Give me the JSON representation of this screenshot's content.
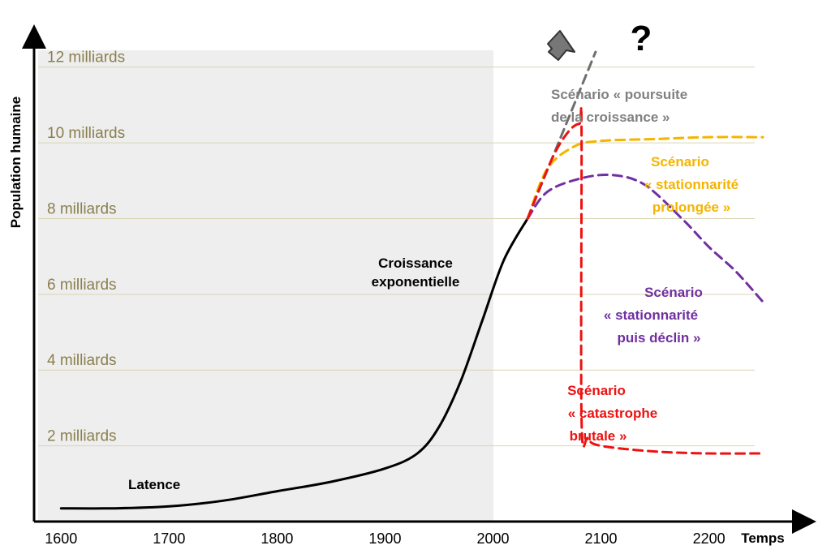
{
  "chart_data": {
    "type": "line",
    "xlabel": "Temps",
    "ylabel": "Population humaine",
    "xlim": [
      1575,
      2295
    ],
    "ylim": [
      0,
      13.0
    ],
    "x_ticks": [
      1600,
      1700,
      1800,
      1900,
      2000,
      2100,
      2200
    ],
    "y_gridlines": [
      {
        "value": 2,
        "label": "2 milliards"
      },
      {
        "value": 4,
        "label": "4 milliards"
      },
      {
        "value": 6,
        "label": "6 milliards"
      },
      {
        "value": 8,
        "label": "8 milliards"
      },
      {
        "value": 10,
        "label": "10 milliards"
      },
      {
        "value": 12,
        "label": "12 milliards"
      }
    ],
    "shaded_region": {
      "x": [
        1575,
        2035
      ],
      "color": "#eeeeee"
    },
    "series": [
      {
        "style": "solid",
        "color": "#000000",
        "points": [
          [
            1600,
            0.35
          ],
          [
            1650,
            0.35
          ],
          [
            1700,
            0.4
          ],
          [
            1750,
            0.55
          ],
          [
            1800,
            0.8
          ],
          [
            1850,
            1.05
          ],
          [
            1900,
            1.4
          ],
          [
            1930,
            1.8
          ],
          [
            1950,
            2.5
          ],
          [
            1970,
            3.7
          ],
          [
            1990,
            5.3
          ],
          [
            2010,
            6.9
          ],
          [
            2032,
            8.0
          ]
        ]
      },
      {
        "style": "dashed",
        "color": "#6e6e6e",
        "points": [
          [
            2032,
            8.0
          ],
          [
            2060,
            10.0
          ],
          [
            2095,
            12.4
          ]
        ]
      },
      {
        "style": "dashed",
        "color": "#f4b400",
        "points": [
          [
            2032,
            8.0
          ],
          [
            2050,
            9.3
          ],
          [
            2075,
            9.9
          ],
          [
            2100,
            10.05
          ],
          [
            2150,
            10.1
          ],
          [
            2200,
            10.15
          ],
          [
            2250,
            10.15
          ]
        ]
      },
      {
        "style": "dashed",
        "color": "#7030a0",
        "points": [
          [
            2032,
            8.0
          ],
          [
            2050,
            8.7
          ],
          [
            2080,
            9.05
          ],
          [
            2110,
            9.15
          ],
          [
            2140,
            8.9
          ],
          [
            2175,
            8.0
          ],
          [
            2200,
            7.25
          ],
          [
            2225,
            6.6
          ],
          [
            2250,
            5.8
          ]
        ]
      },
      {
        "style": "dashed",
        "color": "#ee1111",
        "points": [
          [
            2032,
            8.0
          ],
          [
            2055,
            9.6
          ],
          [
            2070,
            10.3
          ],
          [
            2080,
            10.5
          ],
          [
            2082,
            10.3
          ],
          [
            2082,
            2.7
          ],
          [
            2088,
            2.2
          ],
          [
            2100,
            2.0
          ],
          [
            2150,
            1.85
          ],
          [
            2200,
            1.8
          ],
          [
            2250,
            1.8
          ]
        ]
      }
    ],
    "annotations": {
      "latence": "Latence",
      "croissance_l1": "Croissance",
      "croissance_l2": "exponentielle",
      "question": "?",
      "poursuite_l1": "Scénario « poursuite",
      "poursuite_l2": "de la croissance »",
      "prolongee_l1": "Scénario",
      "prolongee_l2": "« stationnarité",
      "prolongee_l3": "prolongée »",
      "declin_l1": "Scénario",
      "declin_l2": "« stationnarité",
      "declin_l3": "puis déclin »",
      "catastrophe_l1": "Scénario",
      "catastrophe_l2": "« catastrophe",
      "catastrophe_l3": "brutale »"
    },
    "colors": {
      "grid": "#d9d4b4",
      "gray": "#7f7f7f",
      "yellow": "#f4b400",
      "purple": "#7030a0",
      "red": "#ee1111"
    }
  }
}
